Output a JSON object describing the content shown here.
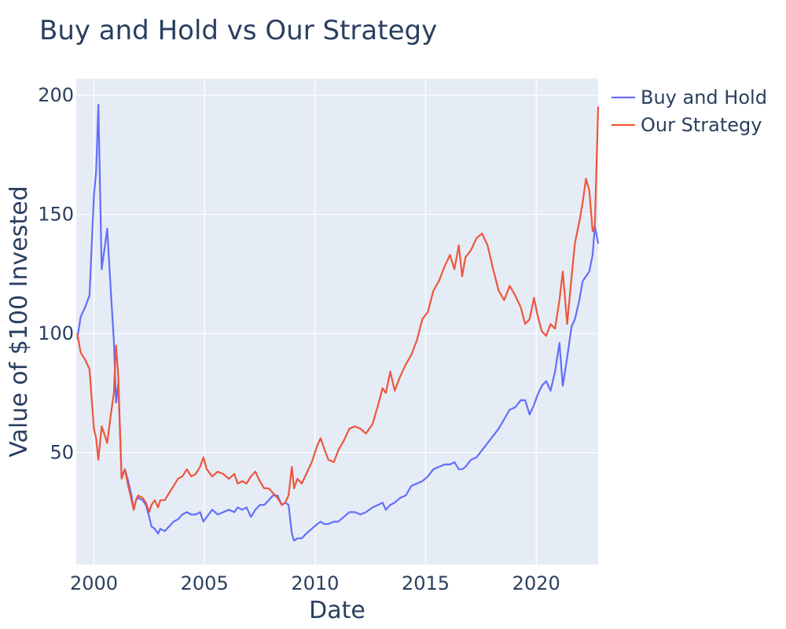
{
  "chart_data": {
    "type": "line",
    "title": "Buy and Hold vs Our Strategy",
    "xlabel": "Date",
    "ylabel": "Value of $100 Invested",
    "xlim": [
      1999.2,
      2022.8
    ],
    "ylim": [
      3,
      207
    ],
    "x_ticks": [
      2000,
      2005,
      2010,
      2015,
      2020
    ],
    "x_tick_labels": [
      "2000",
      "2005",
      "2010",
      "2015",
      "2020"
    ],
    "y_ticks": [
      50,
      100,
      150,
      200
    ],
    "y_tick_labels": [
      "50",
      "100",
      "150",
      "200"
    ],
    "grid": true,
    "legend_position": "top-right",
    "plot_background": "#e5ecf6",
    "series": [
      {
        "name": "Buy and Hold",
        "color": "#636efa",
        "points": [
          [
            1999.25,
            98
          ],
          [
            1999.4,
            107
          ],
          [
            1999.6,
            111
          ],
          [
            1999.8,
            116
          ],
          [
            2000.0,
            158
          ],
          [
            2000.1,
            168
          ],
          [
            2000.2,
            196
          ],
          [
            2000.35,
            127
          ],
          [
            2000.5,
            137
          ],
          [
            2000.6,
            144
          ],
          [
            2000.75,
            120
          ],
          [
            2000.9,
            97
          ],
          [
            2001.0,
            71
          ],
          [
            2001.1,
            79
          ],
          [
            2001.25,
            40
          ],
          [
            2001.4,
            43
          ],
          [
            2001.55,
            38
          ],
          [
            2001.7,
            32
          ],
          [
            2001.8,
            26
          ],
          [
            2001.9,
            30
          ],
          [
            2002.0,
            31
          ],
          [
            2002.2,
            30
          ],
          [
            2002.35,
            28
          ],
          [
            2002.5,
            23
          ],
          [
            2002.6,
            19
          ],
          [
            2002.75,
            18
          ],
          [
            2002.9,
            16
          ],
          [
            2003.0,
            18
          ],
          [
            2003.2,
            17
          ],
          [
            2003.4,
            19
          ],
          [
            2003.6,
            21
          ],
          [
            2003.8,
            22
          ],
          [
            2004.0,
            24
          ],
          [
            2004.2,
            25
          ],
          [
            2004.4,
            24
          ],
          [
            2004.6,
            24
          ],
          [
            2004.8,
            25
          ],
          [
            2004.95,
            21
          ],
          [
            2005.1,
            23
          ],
          [
            2005.35,
            26
          ],
          [
            2005.6,
            24
          ],
          [
            2005.85,
            25
          ],
          [
            2006.1,
            26
          ],
          [
            2006.35,
            25
          ],
          [
            2006.5,
            27
          ],
          [
            2006.7,
            26
          ],
          [
            2006.9,
            27
          ],
          [
            2007.1,
            23
          ],
          [
            2007.3,
            26
          ],
          [
            2007.5,
            28
          ],
          [
            2007.7,
            28
          ],
          [
            2007.9,
            30
          ],
          [
            2008.1,
            32
          ],
          [
            2008.3,
            32
          ],
          [
            2008.5,
            28
          ],
          [
            2008.65,
            29
          ],
          [
            2008.8,
            28
          ],
          [
            2008.95,
            16
          ],
          [
            2009.05,
            13
          ],
          [
            2009.2,
            14
          ],
          [
            2009.4,
            14
          ],
          [
            2009.6,
            16
          ],
          [
            2009.85,
            18
          ],
          [
            2010.1,
            20
          ],
          [
            2010.25,
            21
          ],
          [
            2010.4,
            20
          ],
          [
            2010.6,
            20
          ],
          [
            2010.85,
            21
          ],
          [
            2011.05,
            21
          ],
          [
            2011.3,
            23
          ],
          [
            2011.55,
            25
          ],
          [
            2011.8,
            25
          ],
          [
            2012.05,
            24
          ],
          [
            2012.3,
            25
          ],
          [
            2012.6,
            27
          ],
          [
            2012.85,
            28
          ],
          [
            2013.05,
            29
          ],
          [
            2013.2,
            26
          ],
          [
            2013.4,
            28
          ],
          [
            2013.6,
            29
          ],
          [
            2013.85,
            31
          ],
          [
            2014.1,
            32
          ],
          [
            2014.35,
            36
          ],
          [
            2014.6,
            37
          ],
          [
            2014.85,
            38
          ],
          [
            2015.1,
            40
          ],
          [
            2015.35,
            43
          ],
          [
            2015.6,
            44
          ],
          [
            2015.85,
            45
          ],
          [
            2016.1,
            45
          ],
          [
            2016.3,
            46
          ],
          [
            2016.5,
            43
          ],
          [
            2016.65,
            43
          ],
          [
            2016.8,
            44
          ],
          [
            2017.05,
            47
          ],
          [
            2017.3,
            48
          ],
          [
            2017.55,
            51
          ],
          [
            2017.8,
            54
          ],
          [
            2018.05,
            57
          ],
          [
            2018.3,
            60
          ],
          [
            2018.55,
            64
          ],
          [
            2018.8,
            68
          ],
          [
            2019.05,
            69
          ],
          [
            2019.3,
            72
          ],
          [
            2019.5,
            72
          ],
          [
            2019.7,
            66
          ],
          [
            2019.9,
            70
          ],
          [
            2020.05,
            74
          ],
          [
            2020.25,
            78
          ],
          [
            2020.45,
            80
          ],
          [
            2020.65,
            76
          ],
          [
            2020.85,
            84
          ],
          [
            2021.05,
            96
          ],
          [
            2021.2,
            78
          ],
          [
            2021.4,
            90
          ],
          [
            2021.6,
            103
          ],
          [
            2021.75,
            106
          ],
          [
            2021.95,
            114
          ],
          [
            2022.1,
            122
          ],
          [
            2022.25,
            124
          ],
          [
            2022.4,
            126
          ],
          [
            2022.55,
            133
          ],
          [
            2022.65,
            145
          ],
          [
            2022.8,
            138
          ]
        ]
      },
      {
        "name": "Our Strategy",
        "color": "#ef553b",
        "points": [
          [
            1999.25,
            100
          ],
          [
            1999.4,
            92
          ],
          [
            1999.6,
            89
          ],
          [
            1999.8,
            85
          ],
          [
            2000.0,
            60
          ],
          [
            2000.1,
            56
          ],
          [
            2000.2,
            47
          ],
          [
            2000.35,
            61
          ],
          [
            2000.5,
            57
          ],
          [
            2000.6,
            54
          ],
          [
            2000.75,
            65
          ],
          [
            2000.9,
            75
          ],
          [
            2001.0,
            95
          ],
          [
            2001.1,
            82
          ],
          [
            2001.25,
            39
          ],
          [
            2001.4,
            43
          ],
          [
            2001.55,
            36
          ],
          [
            2001.7,
            30
          ],
          [
            2001.8,
            26
          ],
          [
            2001.9,
            30
          ],
          [
            2002.0,
            32
          ],
          [
            2002.2,
            31
          ],
          [
            2002.35,
            29
          ],
          [
            2002.5,
            25
          ],
          [
            2002.6,
            28
          ],
          [
            2002.75,
            30
          ],
          [
            2002.9,
            27
          ],
          [
            2003.0,
            30
          ],
          [
            2003.2,
            30
          ],
          [
            2003.4,
            33
          ],
          [
            2003.6,
            36
          ],
          [
            2003.8,
            39
          ],
          [
            2004.0,
            40
          ],
          [
            2004.2,
            43
          ],
          [
            2004.4,
            40
          ],
          [
            2004.6,
            41
          ],
          [
            2004.8,
            44
          ],
          [
            2004.95,
            48
          ],
          [
            2005.1,
            43
          ],
          [
            2005.35,
            40
          ],
          [
            2005.6,
            42
          ],
          [
            2005.85,
            41
          ],
          [
            2006.1,
            39
          ],
          [
            2006.35,
            41
          ],
          [
            2006.5,
            37
          ],
          [
            2006.7,
            38
          ],
          [
            2006.9,
            37
          ],
          [
            2007.1,
            40
          ],
          [
            2007.3,
            42
          ],
          [
            2007.5,
            38
          ],
          [
            2007.7,
            35
          ],
          [
            2007.9,
            35
          ],
          [
            2008.1,
            33
          ],
          [
            2008.3,
            31
          ],
          [
            2008.5,
            28
          ],
          [
            2008.65,
            29
          ],
          [
            2008.8,
            32
          ],
          [
            2008.95,
            44
          ],
          [
            2009.05,
            35
          ],
          [
            2009.2,
            39
          ],
          [
            2009.4,
            37
          ],
          [
            2009.6,
            41
          ],
          [
            2009.85,
            46
          ],
          [
            2010.1,
            53
          ],
          [
            2010.25,
            56
          ],
          [
            2010.4,
            52
          ],
          [
            2010.6,
            47
          ],
          [
            2010.85,
            46
          ],
          [
            2011.05,
            51
          ],
          [
            2011.3,
            55
          ],
          [
            2011.55,
            60
          ],
          [
            2011.8,
            61
          ],
          [
            2012.05,
            60
          ],
          [
            2012.3,
            58
          ],
          [
            2012.6,
            62
          ],
          [
            2012.85,
            70
          ],
          [
            2013.05,
            77
          ],
          [
            2013.2,
            75
          ],
          [
            2013.4,
            84
          ],
          [
            2013.6,
            76
          ],
          [
            2013.85,
            82
          ],
          [
            2014.1,
            87
          ],
          [
            2014.35,
            91
          ],
          [
            2014.6,
            97
          ],
          [
            2014.85,
            106
          ],
          [
            2015.1,
            109
          ],
          [
            2015.35,
            118
          ],
          [
            2015.6,
            122
          ],
          [
            2015.85,
            128
          ],
          [
            2016.1,
            133
          ],
          [
            2016.3,
            127
          ],
          [
            2016.5,
            137
          ],
          [
            2016.65,
            124
          ],
          [
            2016.8,
            132
          ],
          [
            2017.05,
            135
          ],
          [
            2017.3,
            140
          ],
          [
            2017.55,
            142
          ],
          [
            2017.8,
            137
          ],
          [
            2018.05,
            127
          ],
          [
            2018.3,
            118
          ],
          [
            2018.55,
            114
          ],
          [
            2018.8,
            120
          ],
          [
            2019.05,
            116
          ],
          [
            2019.3,
            111
          ],
          [
            2019.5,
            104
          ],
          [
            2019.7,
            106
          ],
          [
            2019.9,
            115
          ],
          [
            2020.05,
            108
          ],
          [
            2020.25,
            101
          ],
          [
            2020.45,
            99
          ],
          [
            2020.65,
            104
          ],
          [
            2020.85,
            102
          ],
          [
            2021.05,
            114
          ],
          [
            2021.2,
            126
          ],
          [
            2021.4,
            104
          ],
          [
            2021.6,
            124
          ],
          [
            2021.75,
            138
          ],
          [
            2021.95,
            147
          ],
          [
            2022.1,
            155
          ],
          [
            2022.25,
            165
          ],
          [
            2022.4,
            160
          ],
          [
            2022.55,
            143
          ],
          [
            2022.65,
            145
          ],
          [
            2022.8,
            195
          ]
        ]
      }
    ]
  }
}
